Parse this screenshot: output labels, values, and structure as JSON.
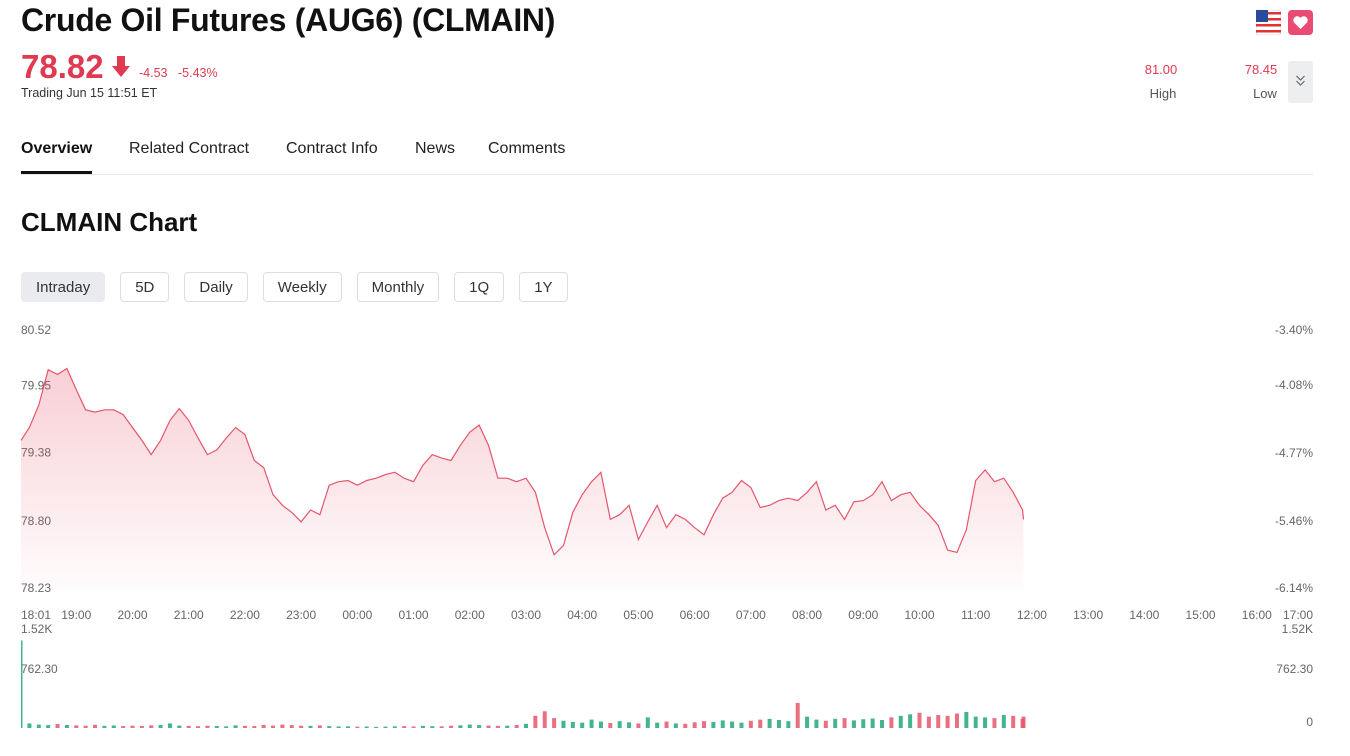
{
  "header": {
    "title": "Crude Oil Futures (AUG6) (CLMAIN)",
    "price": "78.82",
    "change": "-4.53",
    "change_pct": "-5.43%",
    "status": "Trading Jun 15 11:51 ET",
    "high": {
      "value": "81.00",
      "label": "High"
    },
    "low": {
      "value": "78.45",
      "label": "Low"
    }
  },
  "tabs": [
    "Overview",
    "Related Contract",
    "Contract Info",
    "News",
    "Comments"
  ],
  "active_tab": 0,
  "section_title": "CLMAIN Chart",
  "ranges": [
    "Intraday",
    "5D",
    "Daily",
    "Weekly",
    "Monthly",
    "1Q",
    "1Y"
  ],
  "active_range": 0,
  "chart_data": {
    "type": "area",
    "color": "#e5566b",
    "x": [
      "18:01",
      "18:10",
      "18:20",
      "18:30",
      "18:40",
      "18:50",
      "19:00",
      "19:10",
      "19:20",
      "19:30",
      "19:40",
      "19:50",
      "20:00",
      "20:10",
      "20:20",
      "20:30",
      "20:40",
      "20:50",
      "21:00",
      "21:10",
      "21:20",
      "21:30",
      "21:40",
      "21:50",
      "22:00",
      "22:10",
      "22:20",
      "22:30",
      "22:40",
      "22:50",
      "23:00",
      "23:10",
      "23:20",
      "23:30",
      "23:40",
      "23:50",
      "00:00",
      "00:10",
      "00:20",
      "00:30",
      "00:40",
      "00:50",
      "01:00",
      "01:10",
      "01:20",
      "01:30",
      "01:40",
      "01:50",
      "02:00",
      "02:10",
      "02:20",
      "02:30",
      "02:40",
      "02:50",
      "03:00",
      "03:10",
      "03:20",
      "03:30",
      "03:40",
      "03:50",
      "04:00",
      "04:10",
      "04:20",
      "04:30",
      "04:40",
      "04:50",
      "05:00",
      "05:10",
      "05:20",
      "05:30",
      "05:40",
      "05:50",
      "06:00",
      "06:10",
      "06:20",
      "06:30",
      "06:40",
      "06:50",
      "07:00",
      "07:10",
      "07:20",
      "07:30",
      "07:40",
      "07:50",
      "08:00",
      "08:10",
      "08:20",
      "08:30",
      "08:40",
      "08:50",
      "09:00",
      "09:10",
      "09:20",
      "09:30",
      "09:40",
      "09:50",
      "10:00",
      "10:10",
      "10:20",
      "10:30",
      "10:40",
      "10:50",
      "11:00",
      "11:10",
      "11:20",
      "11:30",
      "11:40",
      "11:50",
      "11:51"
    ],
    "values": [
      79.49,
      79.6,
      79.79,
      80.09,
      80.05,
      80.1,
      79.92,
      79.75,
      79.73,
      79.75,
      79.75,
      79.71,
      79.6,
      79.49,
      79.37,
      79.49,
      79.66,
      79.76,
      79.66,
      79.51,
      79.37,
      79.41,
      79.51,
      79.6,
      79.54,
      79.32,
      79.26,
      79.03,
      78.94,
      78.88,
      78.8,
      78.9,
      78.86,
      79.11,
      79.14,
      79.15,
      79.11,
      79.15,
      79.17,
      79.2,
      79.22,
      79.17,
      79.14,
      79.28,
      79.37,
      79.34,
      79.32,
      79.45,
      79.56,
      79.62,
      79.45,
      79.17,
      79.17,
      79.14,
      79.17,
      79.05,
      78.75,
      78.52,
      78.6,
      78.88,
      79.03,
      79.14,
      79.22,
      78.82,
      78.86,
      78.94,
      78.65,
      78.8,
      78.94,
      78.75,
      78.86,
      78.82,
      78.75,
      78.69,
      78.86,
      79.0,
      79.05,
      79.15,
      79.09,
      78.92,
      78.94,
      78.98,
      79.0,
      78.98,
      79.05,
      79.14,
      78.9,
      78.94,
      78.82,
      78.97,
      78.98,
      79.03,
      79.14,
      78.98,
      79.03,
      79.05,
      78.94,
      78.86,
      78.77,
      78.56,
      78.54,
      78.73,
      79.15,
      79.24,
      79.14,
      79.17,
      79.05,
      78.9,
      78.82
    ],
    "xlim": [
      "18:01",
      "17:00"
    ],
    "xticks": [
      "18:01",
      "19:00",
      "20:00",
      "21:00",
      "22:00",
      "23:00",
      "00:00",
      "01:00",
      "02:00",
      "03:00",
      "04:00",
      "05:00",
      "06:00",
      "07:00",
      "08:00",
      "09:00",
      "10:00",
      "11:00",
      "12:00",
      "13:00",
      "14:00",
      "15:00",
      "16:00",
      "17:00"
    ],
    "ylim": [
      78.23,
      80.52
    ],
    "yticks": [
      80.52,
      79.95,
      79.38,
      {
        "value": 78.8,
        "label": "78.80"
      },
      78.23
    ],
    "y2lim": [
      -6.14,
      -3.4
    ],
    "y2ticks": [
      {
        "value": -3.4,
        "label": "-3.40%"
      },
      {
        "value": -4.08,
        "label": "-4.08%"
      },
      {
        "value": -4.77,
        "label": "-4.77%"
      },
      {
        "value": -5.46,
        "label": "-5.46%"
      },
      {
        "value": -6.14,
        "label": "-6.14%"
      }
    ],
    "volume": {
      "type": "bar",
      "up_color": "#22a77d",
      "down_color": "#e5566b",
      "values": [
        1150,
        60,
        45,
        38,
        52,
        40,
        35,
        30,
        42,
        28,
        33,
        25,
        30,
        27,
        35,
        40,
        60,
        32,
        28,
        24,
        30,
        26,
        22,
        35,
        28,
        25,
        40,
        32,
        45,
        38,
        30,
        28,
        34,
        25,
        20,
        22,
        18,
        20,
        15,
        18,
        22,
        25,
        20,
        28,
        24,
        22,
        30,
        35,
        45,
        38,
        32,
        28,
        30,
        40,
        55,
        160,
        220,
        130,
        95,
        80,
        70,
        110,
        85,
        65,
        90,
        75,
        60,
        140,
        70,
        85,
        60,
        55,
        75,
        90,
        80,
        100,
        85,
        70,
        95,
        110,
        120,
        105,
        90,
        330,
        150,
        110,
        95,
        120,
        130,
        100,
        115,
        125,
        105,
        140,
        160,
        180,
        200,
        150,
        170,
        160,
        190,
        210,
        150,
        140,
        130,
        170,
        160,
        120,
        150
      ],
      "ylim": [
        0,
        1524.6
      ],
      "yticks": [
        {
          "value": 1524.6,
          "label": "1.52K"
        },
        {
          "value": 762.3,
          "label": "762.30"
        },
        0
      ]
    }
  }
}
